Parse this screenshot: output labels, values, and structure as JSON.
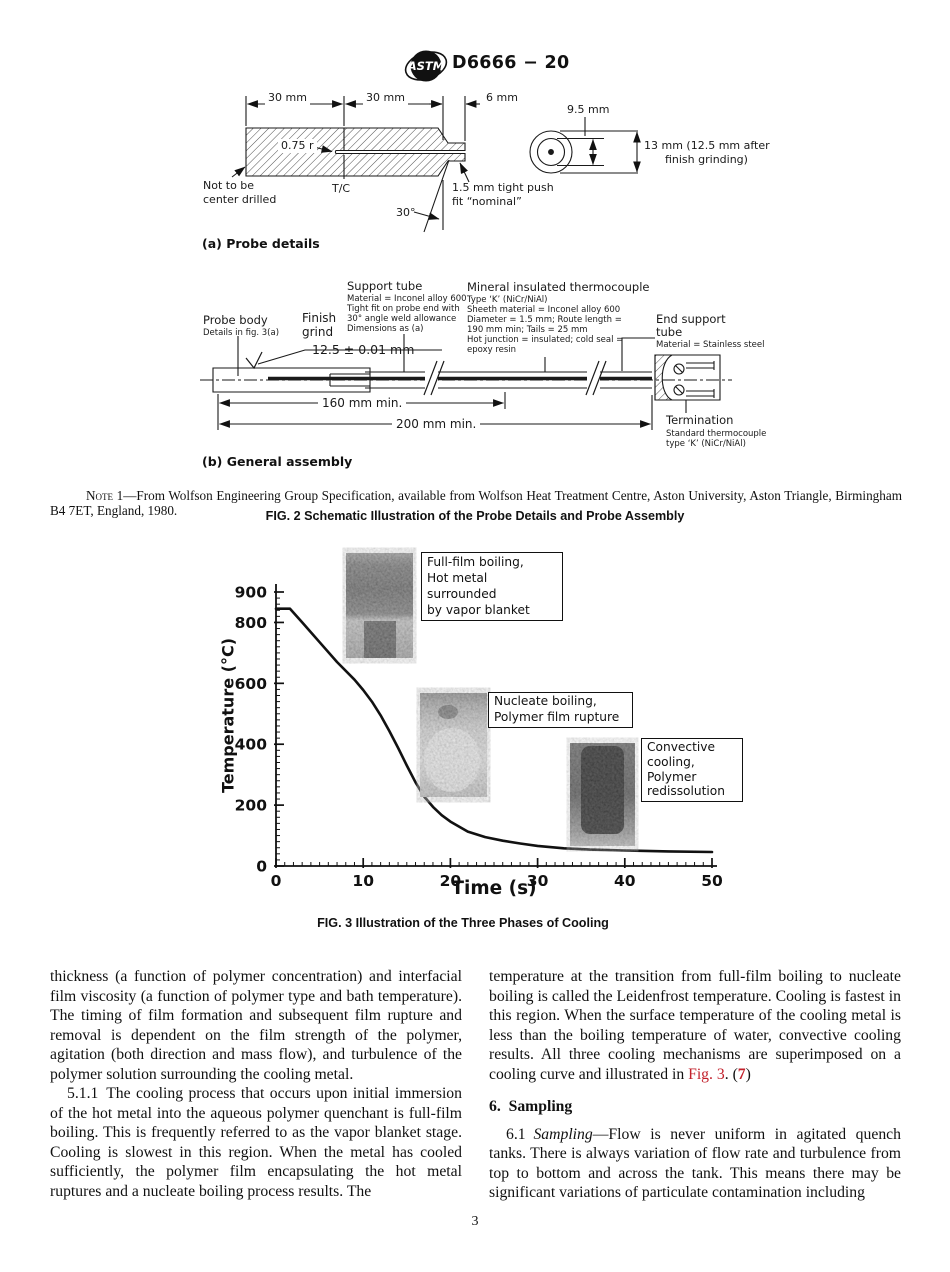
{
  "page": {
    "standard_number": "D6666 − 20",
    "page_number": "3"
  },
  "colors": {
    "accent_red": "#c2202b",
    "text": "#111111"
  },
  "figure2": {
    "probe": {
      "dim_left": "30 mm",
      "dim_mid": "30 mm",
      "dim_tip": "6 mm",
      "radius": "0.75 r",
      "tc_label": "T/C",
      "not_center_drilled": "Not to be\ncenter drilled",
      "push_fit": "1.5 mm tight push\nfit “nominal”",
      "angle": "30°",
      "end_width": "9.5 mm",
      "end_dia": "13 mm (12.5 mm after\n      finish grinding)",
      "caption": "(a) Probe details"
    },
    "assembly": {
      "probe_body_title": "Probe body",
      "probe_body_sub": "Details in fig. 3(a)",
      "finish_grind": "Finish\ngrind",
      "finish_dim": "12.5 ± 0.01 mm",
      "support_tube_title": "Support tube",
      "support_tube_sub": "Material = Inconel alloy 600\nTight fit on probe end with\n30° angle weld allowance\nDimensions as (a)",
      "thermocouple_title": "Mineral insulated thermocouple",
      "thermocouple_sub": "Type ‘K’ (NiCr/NiAl)\nSheeth material = Inconel alloy 600\nDiameter = 1.5 mm; Route length =\n190 mm min; Tails = 25 mm\nHot junction = insulated; cold seal =\nepoxy resin",
      "end_support_title": "End support\ntube",
      "end_support_sub": "Material = Stainless steel",
      "dim_160": "160 mm min.",
      "dim_200": "200 mm min.",
      "termination_title": "Termination",
      "termination_sub": "Standard thermocouple\ntype ‘K’ (NiCr/NiAl)",
      "caption": "(b) General assembly"
    },
    "note_label": "Note 1",
    "note_text": "—From Wolfson Engineering Group Specification, available from Wolfson Heat Treatment Centre, Aston University, Aston Triangle, Birmingham B4 7ET, England, 1980.",
    "caption": "FIG. 2 Schematic Illustration of the Probe Details and Probe Assembly"
  },
  "chart_data": {
    "type": "line",
    "title": "FIG. 3 Illustration of the Three Phases of Cooling",
    "xlabel": "Time (s)",
    "ylabel": "Temperature (°C)",
    "xlim": [
      0,
      50
    ],
    "ylim": [
      0,
      900
    ],
    "x_ticks": [
      0,
      10,
      20,
      30,
      40,
      50
    ],
    "y_ticks": [
      0,
      200,
      400,
      600,
      800,
      900
    ],
    "x_minor_step": 1,
    "y_minor_step": 20,
    "grid": false,
    "legend": false,
    "series": [
      {
        "name": "cooling-curve",
        "x": [
          0,
          1.6,
          3,
          5,
          7,
          9,
          10,
          11,
          12,
          13,
          14,
          15,
          16,
          17,
          18,
          19,
          20,
          22,
          24,
          26,
          28,
          30,
          33,
          36,
          40,
          45,
          50
        ],
        "y": [
          845,
          845,
          800,
          735,
          670,
          612,
          578,
          540,
          495,
          443,
          388,
          330,
          275,
          228,
          194,
          167,
          146,
          113,
          95,
          83,
          74,
          66,
          58,
          54,
          51,
          48,
          46
        ]
      }
    ],
    "annotations": [
      {
        "text": "Full-film boiling,\nHot metal surrounded\nby vapor blanket"
      },
      {
        "text": "Nucleate boiling,\nPolymer film rupture"
      },
      {
        "text": "Convective\ncooling,\nPolymer\nredissolution"
      }
    ]
  },
  "body": {
    "left": {
      "p1": "thickness (a function of polymer concentration) and interfacial film viscosity (a function of polymer type and bath temperature). The timing of film formation and subsequent film rupture and removal is dependent on the film strength of the polymer, agitation (both direction and mass flow), and turbulence of the polymer solution surrounding the cooling metal.",
      "p2": "5.1.1 The cooling process that occurs upon initial immersion of the hot metal into the aqueous polymer quenchant is full-film boiling. This is frequently referred to as the vapor blanket stage. Cooling is slowest in this region. When the metal has cooled sufficiently, the polymer film encapsulating the hot metal ruptures and a nucleate boiling process results. The"
    },
    "right": {
      "p1_before": "temperature at the transition from full-film boiling to nucleate boiling is called the Leidenfrost temperature. Cooling is fastest in this region. When the surface temperature of the cooling metal is less than the boiling temperature of water, convective cooling results. All three cooling mechanisms are superimposed on a cooling curve and illustrated in ",
      "p1_figref": "Fig. 3",
      "p1_mid": ". (",
      "p1_refnum": "7",
      "p1_after": ")",
      "heading": "6. Sampling",
      "p2_num": "6.1 ",
      "p2_term": "Sampling",
      "p2_rest": "—Flow is never uniform in agitated quench tanks. There is always variation of flow rate and turbulence from top to bottom and across the tank. This means there may be significant variations of particulate contamination including"
    }
  }
}
